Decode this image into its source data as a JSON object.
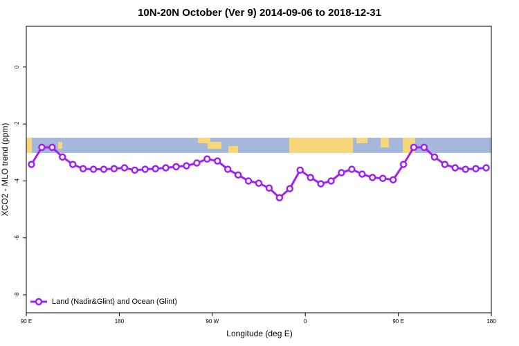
{
  "chart_data": {
    "type": "line",
    "title": "10N-20N October (Ver 9)   2014-09-06 to 2018-12-31",
    "x_label": "Longitude (deg E)",
    "y_label": "XCO2 - MLO trend (ppm)",
    "x": [
      95,
      105,
      115,
      125,
      135,
      145,
      155,
      165,
      175,
      185,
      195,
      205,
      215,
      225,
      235,
      245,
      255,
      265,
      275,
      285,
      295,
      305,
      315,
      325,
      335,
      345,
      355,
      365,
      375,
      385,
      395,
      405,
      415,
      425,
      435,
      445,
      455,
      465,
      475,
      485,
      495,
      505,
      515,
      525,
      535
    ],
    "series": [
      {
        "name": "Land (Nadir&Glint) and Ocean (Glint)",
        "color": "#a020f0",
        "values": [
          -3.42,
          -2.82,
          -2.82,
          -3.16,
          -3.42,
          -3.57,
          -3.59,
          -3.59,
          -3.57,
          -3.54,
          -3.62,
          -3.59,
          -3.57,
          -3.54,
          -3.5,
          -3.47,
          -3.37,
          -3.23,
          -3.3,
          -3.59,
          -3.79,
          -4.0,
          -4.08,
          -4.25,
          -4.59,
          -4.27,
          -3.62,
          -3.88,
          -4.1,
          -4.0,
          -3.71,
          -3.59,
          -3.76,
          -3.88,
          -3.91,
          -3.96,
          -3.42,
          -2.82,
          -2.82,
          -3.16,
          -3.42,
          -3.54,
          -3.59,
          -3.57,
          -3.54
        ]
      }
    ],
    "xlim": [
      90,
      540
    ],
    "xticks": [
      {
        "value": 90,
        "label": "90 E"
      },
      180,
      {
        "value": 270,
        "label": "90 W"
      },
      {
        "value": 360,
        "label": "0"
      },
      {
        "value": 450,
        "label": "90 E"
      },
      {
        "value": 540,
        "label": "180"
      }
    ],
    "ylim": [
      -8.63,
      1.43
    ],
    "yticks": [
      0,
      -2,
      -4,
      -6,
      -8
    ],
    "legend": "bottom-left"
  }
}
